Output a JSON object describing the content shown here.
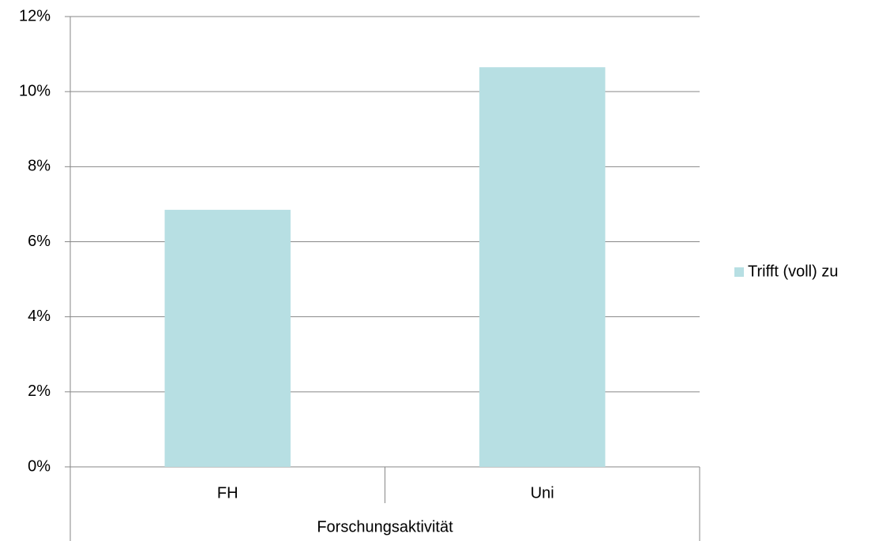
{
  "chart_data": {
    "type": "bar",
    "categories": [
      "FH",
      "Uni"
    ],
    "series": [
      {
        "name": "Trifft (voll) zu",
        "color": "#b7dfe3",
        "values": [
          6.85,
          10.65
        ]
      }
    ],
    "xlabel": "Forschungsaktivität",
    "ylim": [
      0,
      12
    ],
    "yticks": [
      {
        "value": 0,
        "label": "0%"
      },
      {
        "value": 2,
        "label": "2%"
      },
      {
        "value": 4,
        "label": "4%"
      },
      {
        "value": 6,
        "label": "6%"
      },
      {
        "value": 8,
        "label": "8%"
      },
      {
        "value": 10,
        "label": "10%"
      },
      {
        "value": 12,
        "label": "12%"
      }
    ],
    "grid": true,
    "legend": "right"
  }
}
